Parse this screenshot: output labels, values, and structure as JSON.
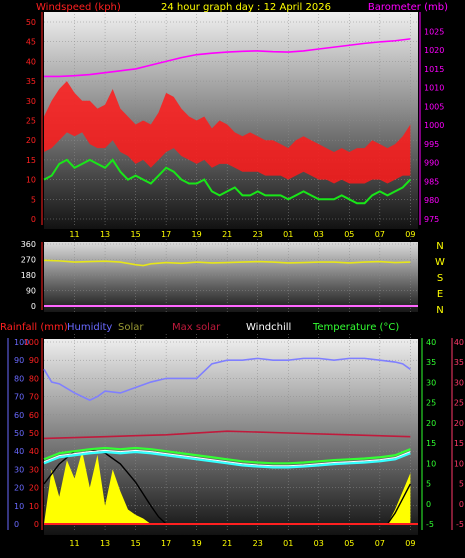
{
  "header": {
    "left_title": "Windspeed (kph)",
    "center_title": "24 hour graph day : 12 April 2026",
    "right_title": "Barometer (mb)"
  },
  "footer_legend": {
    "rainfall": "Rainfall (mm)",
    "humidity": "Humidity",
    "solar": "Solar",
    "max_solar": "Max solar",
    "windchill": "Windchill",
    "temperature": "Temperature (°C)"
  },
  "compass": [
    "N",
    "W",
    "S",
    "E",
    "N"
  ],
  "colors": {
    "wind_red": "#ff1a1a",
    "gust_green": "#19e619",
    "baro_magenta": "#ff00ff",
    "winddir_yellow": "#e6e61a",
    "humidity_blue": "#7f7fff",
    "solar_yellow": "#ffff00",
    "maxsolar_red": "#c01a3c",
    "windchill_white": "#ffffff",
    "temp_green": "#33ff33",
    "temp_cyan": "#33ffff",
    "axis_left_red": "#ff2020",
    "axis_right_magenta": "#ff00ff",
    "axis_blue": "#6a6aff",
    "axis_green": "#30ff30",
    "axis_pink": "#ff3a6a",
    "tick_yellow": "#ffff00"
  },
  "chart_data": [
    {
      "type": "line",
      "x_ticks": [
        "11",
        "13",
        "15",
        "17",
        "19",
        "21",
        "23",
        "01",
        "03",
        "05",
        "07",
        "09"
      ],
      "y_left_ticks": [
        "0",
        "5",
        "10",
        "15",
        "20",
        "25",
        "30",
        "35",
        "40",
        "45",
        "50"
      ],
      "y_right_ticks": [
        "975",
        "980",
        "985",
        "990",
        "995",
        "1000",
        "1005",
        "1010",
        "1015",
        "1020",
        "1025"
      ],
      "ylim_left": [
        0,
        50
      ],
      "ylim_right": [
        975,
        1027.5
      ],
      "series": [
        {
          "kind": "wind_average_band",
          "x": [
            9,
            9.5,
            10,
            10.5,
            11,
            11.5,
            12,
            12.5,
            13,
            13.5,
            14,
            14.5,
            15,
            15.5,
            16,
            16.5,
            17,
            17.5,
            18,
            18.5,
            19,
            19.5,
            20,
            20.5,
            21,
            21.5,
            22,
            22.5,
            23,
            23.5,
            24,
            24.5,
            25,
            25.5,
            26,
            26.5,
            27,
            27.5,
            28,
            28.5,
            29,
            29.5,
            30,
            30.5,
            31,
            31.5,
            32,
            32.5,
            33
          ],
          "low": [
            17,
            18,
            20,
            22,
            21,
            22,
            19,
            18,
            18,
            20,
            17,
            16,
            14,
            15,
            13,
            15,
            17,
            18,
            16,
            15,
            14,
            15,
            13,
            14,
            14,
            13,
            12,
            12,
            12,
            11,
            11,
            11,
            10,
            11,
            12,
            11,
            10,
            10,
            9,
            10,
            9,
            9,
            9,
            10,
            10,
            9,
            10,
            11,
            11
          ],
          "high": [
            26,
            30,
            33,
            35,
            32,
            30,
            30,
            28,
            29,
            33,
            28,
            26,
            24,
            25,
            24,
            27,
            32,
            31,
            28,
            26,
            25,
            26,
            23,
            25,
            24,
            22,
            21,
            22,
            21,
            20,
            20,
            19,
            18,
            20,
            21,
            20,
            19,
            18,
            17,
            18,
            17,
            18,
            18,
            20,
            19,
            18,
            19,
            21,
            24
          ]
        },
        {
          "name": "Wind gust",
          "x": [
            9,
            9.5,
            10,
            10.5,
            11,
            11.5,
            12,
            12.5,
            13,
            13.5,
            14,
            14.5,
            15,
            15.5,
            16,
            16.5,
            17,
            17.5,
            18,
            18.5,
            19,
            19.5,
            20,
            20.5,
            21,
            21.5,
            22,
            22.5,
            23,
            23.5,
            24,
            24.5,
            25,
            25.5,
            26,
            26.5,
            27,
            27.5,
            28,
            28.5,
            29,
            29.5,
            30,
            30.5,
            31,
            31.5,
            32,
            32.5,
            33
          ],
          "values": [
            10,
            11,
            14,
            15,
            13,
            14,
            15,
            14,
            13,
            15,
            12,
            10,
            11,
            10,
            9,
            11,
            13,
            12,
            10,
            9,
            9,
            10,
            7,
            6,
            7,
            8,
            6,
            6,
            7,
            6,
            6,
            6,
            5,
            6,
            7,
            6,
            5,
            5,
            5,
            6,
            5,
            4,
            4,
            6,
            7,
            6,
            7,
            8,
            10
          ]
        },
        {
          "name": "Barometer",
          "axis": "right",
          "x": [
            9,
            10,
            11,
            12,
            13,
            14,
            15,
            16,
            17,
            18,
            19,
            20,
            21,
            22,
            23,
            24,
            25,
            26,
            27,
            28,
            29,
            30,
            31,
            32,
            33
          ],
          "values": [
            1013.0,
            1013.0,
            1013.2,
            1013.5,
            1014.0,
            1014.5,
            1015.0,
            1016.0,
            1017.0,
            1018.0,
            1018.8,
            1019.2,
            1019.5,
            1019.7,
            1019.8,
            1019.6,
            1019.5,
            1019.8,
            1020.3,
            1020.8,
            1021.3,
            1021.8,
            1022.2,
            1022.5,
            1023.0
          ]
        }
      ]
    },
    {
      "type": "line",
      "x_ticks": [
        "11",
        "13",
        "15",
        "17",
        "19",
        "21",
        "23",
        "01",
        "03",
        "05",
        "07",
        "09"
      ],
      "y_ticks": [
        "0",
        "90",
        "180",
        "270",
        "360"
      ],
      "ylim": [
        0,
        360
      ],
      "series": [
        {
          "name": "Wind direction",
          "x": [
            9,
            10,
            11,
            12,
            13,
            14,
            15,
            15.5,
            16,
            17,
            18,
            19,
            20,
            21,
            22,
            23,
            24,
            25,
            26,
            27,
            28,
            29,
            30,
            31,
            32,
            33
          ],
          "values": [
            265,
            262,
            255,
            258,
            260,
            255,
            240,
            235,
            245,
            252,
            248,
            255,
            250,
            252,
            255,
            258,
            255,
            250,
            252,
            255,
            255,
            250,
            255,
            258,
            252,
            255
          ]
        }
      ]
    },
    {
      "type": "line",
      "x_ticks": [
        "11",
        "13",
        "15",
        "17",
        "19",
        "21",
        "23",
        "01",
        "03",
        "05",
        "07",
        "09"
      ],
      "y_rain_ticks": [
        "0",
        "10",
        "20",
        "30",
        "40",
        "50",
        "60",
        "70",
        "80",
        "90",
        "100"
      ],
      "y_humidity_ticks": [
        "0",
        "10",
        "20",
        "30",
        "40",
        "50",
        "60",
        "70",
        "80",
        "90",
        "100"
      ],
      "y_temp_ticks": [
        "-5",
        "0",
        "5",
        "10",
        "15",
        "20",
        "25",
        "30",
        "35",
        "40"
      ],
      "y_windchill_ticks": [
        "-5",
        "0",
        "5",
        "10",
        "15",
        "20",
        "25",
        "30",
        "35",
        "40"
      ],
      "ylim_percent": [
        0,
        100
      ],
      "ylim_temp": [
        -5,
        40
      ],
      "series": [
        {
          "name": "Humidity",
          "x": [
            9,
            9.5,
            10,
            11,
            12,
            12.5,
            13,
            14,
            15,
            16,
            17,
            18,
            19,
            20,
            21,
            22,
            23,
            24,
            25,
            26,
            27,
            28,
            29,
            30,
            31,
            32,
            32.5,
            33
          ],
          "values": [
            85,
            78,
            77,
            72,
            68,
            70,
            73,
            72,
            75,
            78,
            80,
            80,
            80,
            88,
            90,
            90,
            91,
            90,
            90,
            91,
            91,
            90,
            91,
            91,
            90,
            89,
            88,
            85
          ]
        },
        {
          "name": "Solar",
          "x": [
            9,
            9.5,
            10,
            10.5,
            11,
            11.5,
            12,
            12.5,
            13,
            13.5,
            14,
            14.5,
            15,
            15.5,
            16,
            16.5,
            17,
            31.5,
            32,
            32.5,
            33
          ],
          "values": [
            0,
            30,
            15,
            35,
            25,
            40,
            20,
            38,
            10,
            30,
            18,
            8,
            5,
            3,
            0,
            0,
            0,
            0,
            8,
            18,
            28
          ]
        },
        {
          "name": "Max solar",
          "x": [
            9,
            10,
            11,
            12,
            13,
            14,
            15,
            16,
            16.5,
            17,
            31.5,
            32,
            32.5,
            33
          ],
          "values": [
            22,
            33,
            40,
            41,
            39,
            33,
            23,
            10,
            4,
            0,
            0,
            6,
            14,
            22
          ]
        },
        {
          "name": "Max solar level",
          "x": [
            9,
            13,
            17,
            21,
            25,
            29,
            33
          ],
          "values": [
            47,
            48,
            49,
            51,
            50,
            49,
            48
          ]
        },
        {
          "name": "Temperature",
          "x": [
            9,
            10,
            11,
            12,
            13,
            14,
            15,
            16,
            17,
            18,
            19,
            20,
            21,
            22,
            23,
            24,
            25,
            26,
            27,
            28,
            29,
            30,
            31,
            32,
            33
          ],
          "values": [
            11,
            12.5,
            13,
            13.5,
            13.8,
            13.5,
            13.8,
            13.5,
            13,
            12.5,
            12,
            11.5,
            11,
            10.5,
            10.2,
            10,
            10,
            10.2,
            10.5,
            10.8,
            11,
            11.2,
            11.5,
            12,
            13.5
          ]
        },
        {
          "name": "Windchill",
          "x": [
            9,
            10,
            11,
            12,
            13,
            14,
            15,
            16,
            17,
            18,
            19,
            20,
            21,
            22,
            23,
            24,
            25,
            26,
            27,
            28,
            29,
            30,
            31,
            32,
            33
          ],
          "values": [
            10,
            11.5,
            12,
            12.5,
            12.8,
            12.5,
            12.8,
            12.5,
            12,
            11.5,
            11,
            10.5,
            10,
            9.5,
            9.2,
            9,
            9,
            9.2,
            9.5,
            9.8,
            10,
            10.2,
            10.5,
            11,
            12.5
          ]
        }
      ]
    }
  ]
}
